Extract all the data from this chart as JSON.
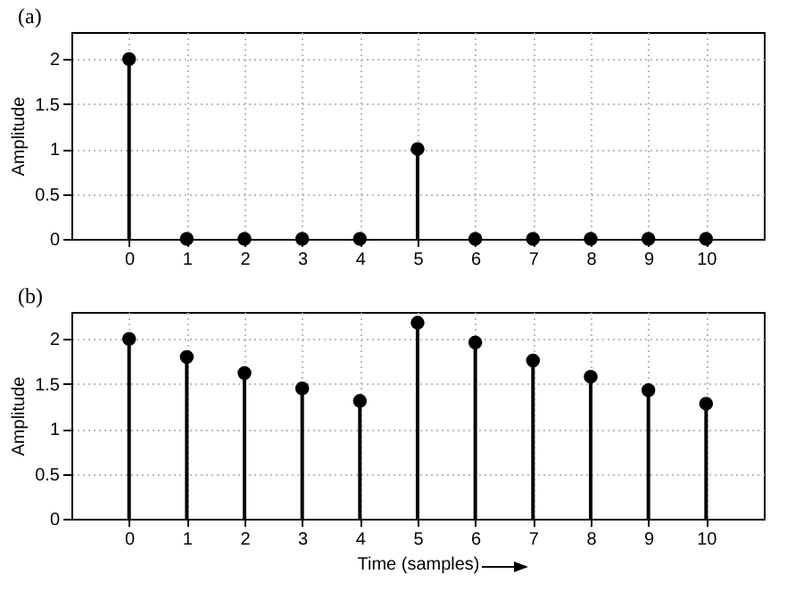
{
  "chart_data": [
    {
      "type": "lollipop",
      "title": "(a)",
      "ylabel": "Amplitude",
      "x": [
        0,
        1,
        2,
        3,
        4,
        5,
        6,
        7,
        8,
        9,
        10
      ],
      "color": "#000000",
      "marker": "circle",
      "grid": true,
      "values": [
        2,
        0,
        0,
        0,
        0,
        1,
        0,
        0,
        0,
        0,
        0
      ],
      "xlim": [
        -1,
        11
      ],
      "xticks": [
        0,
        1,
        2,
        3,
        4,
        5,
        6,
        7,
        8,
        9,
        10
      ],
      "ylim": [
        0,
        2.3
      ],
      "yticks": [
        0,
        0.5,
        1,
        1.5,
        2
      ]
    },
    {
      "type": "lollipop",
      "title": "(b)",
      "ylabel": "Amplitude",
      "xlabel": "Time (samples)",
      "x": [
        0,
        1,
        2,
        3,
        4,
        5,
        6,
        7,
        8,
        9,
        10
      ],
      "color": "#000000",
      "marker": "circle",
      "grid": true,
      "values": [
        2,
        1.8,
        1.62,
        1.45,
        1.31,
        2.18,
        1.96,
        1.76,
        1.58,
        1.43,
        1.28
      ],
      "xlim": [
        -1,
        11
      ],
      "xticks": [
        0,
        1,
        2,
        3,
        4,
        5,
        6,
        7,
        8,
        9,
        10
      ],
      "ylim": [
        0,
        2.3
      ],
      "yticks": [
        0,
        0.5,
        1,
        1.5,
        2
      ]
    }
  ]
}
